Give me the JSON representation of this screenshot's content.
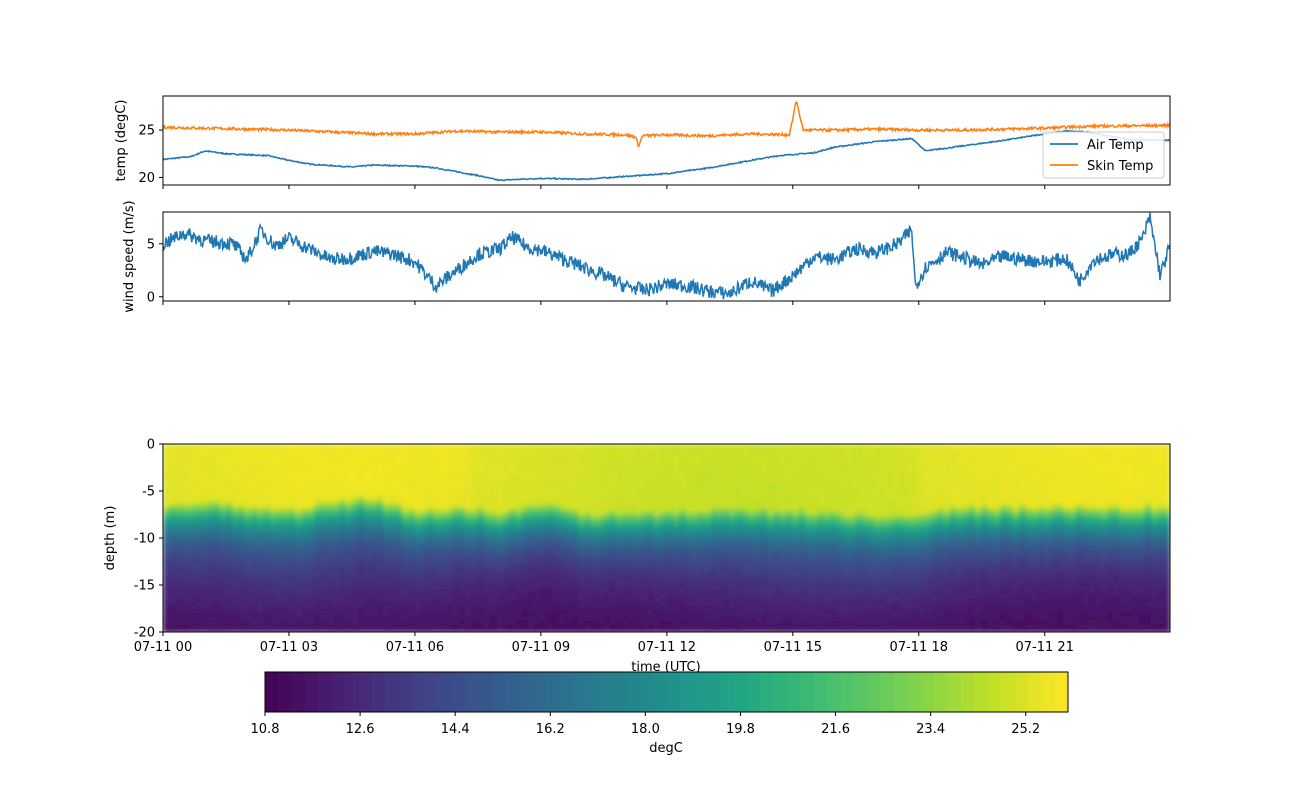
{
  "chart_data": [
    {
      "type": "line",
      "ylabel": "temp (degC)",
      "ylim": [
        19.2,
        28.6
      ],
      "yticks": [
        20,
        25
      ],
      "xlim": [
        "2024-07-11T00:00",
        "2024-07-11T23:59"
      ],
      "legend": "right",
      "series": [
        {
          "name": "Air Temp",
          "color": "#1f77b4",
          "points": [
            [
              "2024-07-11T00:00",
              21.9
            ],
            [
              "2024-07-11T00:40",
              22.2
            ],
            [
              "2024-07-11T01:00",
              22.8
            ],
            [
              "2024-07-11T01:30",
              22.5
            ],
            [
              "2024-07-11T02:30",
              22.3
            ],
            [
              "2024-07-11T03:00",
              21.8
            ],
            [
              "2024-07-11T03:30",
              21.4
            ],
            [
              "2024-07-11T04:30",
              21.1
            ],
            [
              "2024-07-11T05:00",
              21.3
            ],
            [
              "2024-07-11T06:00",
              21.2
            ],
            [
              "2024-07-11T06:30",
              21.0
            ],
            [
              "2024-07-11T07:30",
              20.2
            ],
            [
              "2024-07-11T08:00",
              19.7
            ],
            [
              "2024-07-11T09:00",
              19.9
            ],
            [
              "2024-07-11T10:00",
              19.8
            ],
            [
              "2024-07-11T11:00",
              20.1
            ],
            [
              "2024-07-11T12:00",
              20.4
            ],
            [
              "2024-07-11T13:00",
              21.0
            ],
            [
              "2024-07-11T14:00",
              21.8
            ],
            [
              "2024-07-11T14:40",
              22.3
            ],
            [
              "2024-07-11T15:30",
              22.6
            ],
            [
              "2024-07-11T16:00",
              23.2
            ],
            [
              "2024-07-11T17:00",
              23.8
            ],
            [
              "2024-07-11T17:50",
              24.1
            ],
            [
              "2024-07-11T18:10",
              22.8
            ],
            [
              "2024-07-11T19:00",
              23.3
            ],
            [
              "2024-07-11T20:00",
              23.9
            ],
            [
              "2024-07-11T21:00",
              24.6
            ],
            [
              "2024-07-11T21:30",
              24.9
            ],
            [
              "2024-07-11T22:00",
              24.8
            ],
            [
              "2024-07-11T23:00",
              24.0
            ],
            [
              "2024-07-11T23:59",
              23.9
            ]
          ]
        },
        {
          "name": "Skin Temp",
          "color": "#ff7f0e",
          "points": [
            [
              "2024-07-11T00:00",
              25.3
            ],
            [
              "2024-07-11T01:00",
              25.2
            ],
            [
              "2024-07-11T02:00",
              25.1
            ],
            [
              "2024-07-11T03:00",
              25.0
            ],
            [
              "2024-07-11T04:00",
              24.8
            ],
            [
              "2024-07-11T05:00",
              24.6
            ],
            [
              "2024-07-11T06:00",
              24.6
            ],
            [
              "2024-07-11T07:00",
              24.9
            ],
            [
              "2024-07-11T08:00",
              24.8
            ],
            [
              "2024-07-11T09:00",
              24.8
            ],
            [
              "2024-07-11T10:00",
              24.6
            ],
            [
              "2024-07-11T11:00",
              24.5
            ],
            [
              "2024-07-11T11:15",
              24.3
            ],
            [
              "2024-07-11T11:20",
              23.3
            ],
            [
              "2024-07-11T11:25",
              24.4
            ],
            [
              "2024-07-11T12:00",
              24.5
            ],
            [
              "2024-07-11T13:00",
              24.4
            ],
            [
              "2024-07-11T14:00",
              24.6
            ],
            [
              "2024-07-11T14:55",
              24.5
            ],
            [
              "2024-07-11T15:00",
              26.2
            ],
            [
              "2024-07-11T15:05",
              28.2
            ],
            [
              "2024-07-11T15:10",
              26.5
            ],
            [
              "2024-07-11T15:15",
              25.0
            ],
            [
              "2024-07-11T16:00",
              25.0
            ],
            [
              "2024-07-11T17:00",
              25.1
            ],
            [
              "2024-07-11T18:00",
              25.0
            ],
            [
              "2024-07-11T19:00",
              25.0
            ],
            [
              "2024-07-11T20:00",
              25.1
            ],
            [
              "2024-07-11T21:00",
              25.2
            ],
            [
              "2024-07-11T22:00",
              25.4
            ],
            [
              "2024-07-11T23:59",
              25.5
            ]
          ]
        }
      ]
    },
    {
      "type": "line",
      "ylabel": "wind speed (m/s)",
      "ylim": [
        -0.4,
        8.0
      ],
      "yticks": [
        0,
        5
      ],
      "xlim": [
        "2024-07-11T00:00",
        "2024-07-11T23:59"
      ],
      "series": [
        {
          "color": "#1f77b4",
          "points": [
            [
              "2024-07-11T00:00",
              5.0
            ],
            [
              "2024-07-11T00:30",
              6.0
            ],
            [
              "2024-07-11T01:00",
              5.3
            ],
            [
              "2024-07-11T01:40",
              5.0
            ],
            [
              "2024-07-11T02:00",
              3.5
            ],
            [
              "2024-07-11T02:20",
              6.3
            ],
            [
              "2024-07-11T02:40",
              4.8
            ],
            [
              "2024-07-11T03:00",
              5.5
            ],
            [
              "2024-07-11T03:30",
              4.5
            ],
            [
              "2024-07-11T04:00",
              3.5
            ],
            [
              "2024-07-11T04:30",
              3.7
            ],
            [
              "2024-07-11T05:00",
              4.3
            ],
            [
              "2024-07-11T05:30",
              4.0
            ],
            [
              "2024-07-11T06:00",
              3.3
            ],
            [
              "2024-07-11T06:30",
              1.0
            ],
            [
              "2024-07-11T07:00",
              2.5
            ],
            [
              "2024-07-11T07:30",
              4.0
            ],
            [
              "2024-07-11T08:00",
              4.5
            ],
            [
              "2024-07-11T08:20",
              5.6
            ],
            [
              "2024-07-11T08:40",
              4.7
            ],
            [
              "2024-07-11T09:00",
              4.4
            ],
            [
              "2024-07-11T09:30",
              3.6
            ],
            [
              "2024-07-11T10:00",
              2.8
            ],
            [
              "2024-07-11T10:30",
              2.0
            ],
            [
              "2024-07-11T11:00",
              1.0
            ],
            [
              "2024-07-11T11:30",
              0.6
            ],
            [
              "2024-07-11T12:00",
              1.2
            ],
            [
              "2024-07-11T12:30",
              1.0
            ],
            [
              "2024-07-11T13:00",
              0.5
            ],
            [
              "2024-07-11T13:30",
              0.3
            ],
            [
              "2024-07-11T14:00",
              1.5
            ],
            [
              "2024-07-11T14:30",
              0.5
            ],
            [
              "2024-07-11T15:00",
              2.0
            ],
            [
              "2024-07-11T15:30",
              3.8
            ],
            [
              "2024-07-11T16:00",
              3.5
            ],
            [
              "2024-07-11T16:30",
              4.5
            ],
            [
              "2024-07-11T17:00",
              4.2
            ],
            [
              "2024-07-11T17:30",
              5.0
            ],
            [
              "2024-07-11T17:50",
              6.3
            ],
            [
              "2024-07-11T17:55",
              1.0
            ],
            [
              "2024-07-11T18:10",
              2.8
            ],
            [
              "2024-07-11T18:40",
              4.2
            ],
            [
              "2024-07-11T19:00",
              3.8
            ],
            [
              "2024-07-11T19:30",
              3.0
            ],
            [
              "2024-07-11T20:00",
              3.8
            ],
            [
              "2024-07-11T20:30",
              3.5
            ],
            [
              "2024-07-11T21:00",
              3.3
            ],
            [
              "2024-07-11T21:30",
              3.6
            ],
            [
              "2024-07-11T21:50",
              1.5
            ],
            [
              "2024-07-11T22:10",
              3.5
            ],
            [
              "2024-07-11T22:40",
              4.0
            ],
            [
              "2024-07-11T23:00",
              4.0
            ],
            [
              "2024-07-11T23:20",
              5.5
            ],
            [
              "2024-07-11T23:30",
              7.5
            ],
            [
              "2024-07-11T23:45",
              2.0
            ],
            [
              "2024-07-11T23:59",
              4.8
            ]
          ]
        }
      ]
    },
    {
      "type": "heatmap",
      "ylabel": "depth (m)",
      "xlabel": "time (UTC)",
      "ylim": [
        -20,
        0
      ],
      "yticks": [
        0,
        -5,
        -10,
        -15,
        -20
      ],
      "xlim": [
        "2024-07-11T00:00",
        "2024-07-11T23:59"
      ],
      "xticks": [
        "2024-07-11T00:00",
        "2024-07-11T03:00",
        "2024-07-11T06:00",
        "2024-07-11T09:00",
        "2024-07-11T12:00",
        "2024-07-11T15:00",
        "2024-07-11T18:00",
        "2024-07-11T21:00"
      ],
      "xticklabels": [
        "07-11 00",
        "07-11 03",
        "07-11 06",
        "07-11 09",
        "07-11 12",
        "07-11 15",
        "07-11 18",
        "07-11 21"
      ],
      "colormap": "viridis",
      "clim": [
        10.8,
        26.0
      ],
      "mixed_layer_depth": [
        [
          "2024-07-11T00:00",
          -6.5
        ],
        [
          "2024-07-11T01:00",
          -5.8
        ],
        [
          "2024-07-11T02:00",
          -6.5
        ],
        [
          "2024-07-11T03:00",
          -6.8
        ],
        [
          "2024-07-11T04:00",
          -6.0
        ],
        [
          "2024-07-11T05:00",
          -5.5
        ],
        [
          "2024-07-11T06:00",
          -6.8
        ],
        [
          "2024-07-11T07:00",
          -6.5
        ],
        [
          "2024-07-11T08:00",
          -7.0
        ],
        [
          "2024-07-11T09:00",
          -6.2
        ],
        [
          "2024-07-11T10:00",
          -7.2
        ],
        [
          "2024-07-11T12:00",
          -7.0
        ],
        [
          "2024-07-11T14:00",
          -6.8
        ],
        [
          "2024-07-11T16:00",
          -7.0
        ],
        [
          "2024-07-11T17:00",
          -7.5
        ],
        [
          "2024-07-11T18:00",
          -7.2
        ],
        [
          "2024-07-11T19:00",
          -6.6
        ],
        [
          "2024-07-11T21:00",
          -6.5
        ],
        [
          "2024-07-11T23:59",
          -6.4
        ]
      ],
      "colorbar": {
        "label": "degC",
        "ticks": [
          10.8,
          12.6,
          14.4,
          16.2,
          18.0,
          19.8,
          21.6,
          23.4,
          25.2
        ],
        "ticklabels": [
          "10.8",
          "12.6",
          "14.4",
          "16.2",
          "18.0",
          "19.8",
          "21.6",
          "23.4",
          "25.2"
        ],
        "orientation": "horizontal"
      }
    }
  ],
  "colors": {
    "axes": "#000000",
    "background": "#ffffff"
  }
}
